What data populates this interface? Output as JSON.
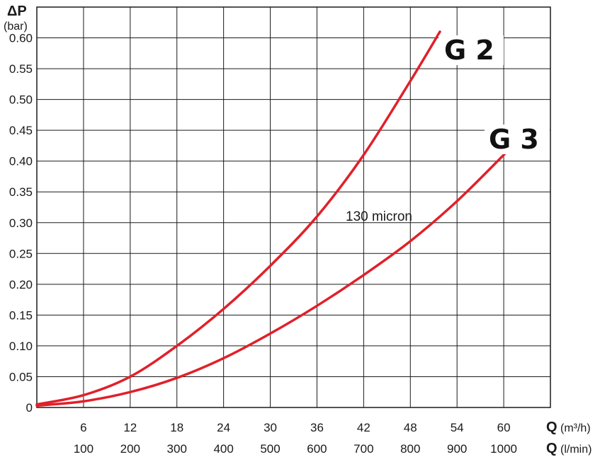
{
  "chart_data": {
    "type": "line",
    "y_axis": {
      "symbol": "ΔP",
      "unit": "(bar)",
      "range": [
        0,
        0.65
      ],
      "ticks": [
        "0",
        "0.05",
        "0.10",
        "0.15",
        "0.20",
        "0.25",
        "0.30",
        "0.35",
        "0.40",
        "0.45",
        "0.50",
        "0.55",
        "0.60"
      ]
    },
    "x_axis": {
      "range_m3h": [
        0,
        66
      ],
      "ticks_m3h": [
        "6",
        "12",
        "18",
        "24",
        "30",
        "36",
        "42",
        "48",
        "54",
        "60"
      ],
      "ticks_lmin": [
        "100",
        "200",
        "300",
        "400",
        "500",
        "600",
        "700",
        "800",
        "900",
        "1000"
      ],
      "label_m3h": {
        "symbol": "Q",
        "unit": "(m³/h)"
      },
      "label_lmin": {
        "symbol": "Q",
        "unit": "(l/min)"
      }
    },
    "grid": true,
    "series": [
      {
        "name": "G 2",
        "color": "#e0202a",
        "x": [
          0,
          6,
          12,
          18,
          24,
          30,
          36,
          42,
          48,
          51.8
        ],
        "y": [
          0.005,
          0.02,
          0.05,
          0.1,
          0.16,
          0.23,
          0.31,
          0.41,
          0.53,
          0.61
        ]
      },
      {
        "name": "G 3",
        "color": "#e0202a",
        "x": [
          0,
          6,
          12,
          18,
          24,
          30,
          36,
          42,
          48,
          54,
          60,
          61.5
        ],
        "y": [
          0.003,
          0.01,
          0.025,
          0.048,
          0.08,
          0.12,
          0.165,
          0.215,
          0.27,
          0.335,
          0.41,
          0.43
        ]
      }
    ],
    "annotations": [
      "130 micron"
    ]
  }
}
